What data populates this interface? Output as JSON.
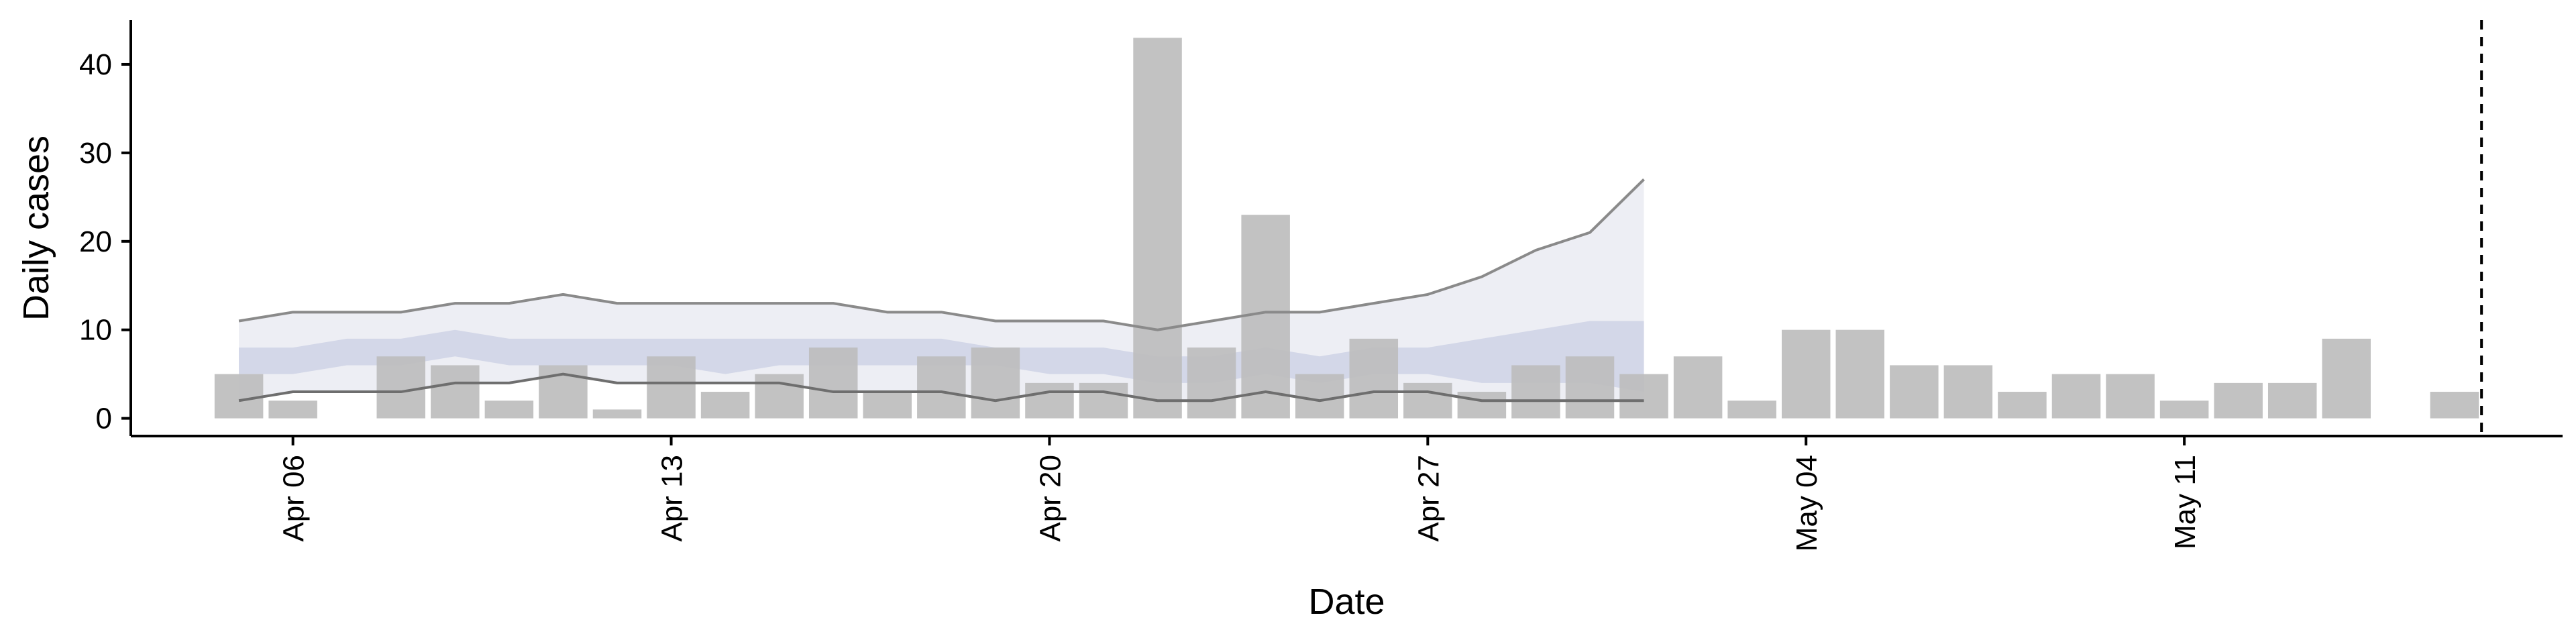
{
  "chart_data": {
    "type": "bar",
    "xlabel": "Date",
    "ylabel": "Daily cases",
    "ylim": [
      -2,
      45
    ],
    "xlim": [
      "2020-04-03",
      "2020-05-18"
    ],
    "yticks": [
      0,
      10,
      20,
      30,
      40
    ],
    "xticks": [
      {
        "date": "2020-04-06",
        "label": "Apr 06"
      },
      {
        "date": "2020-04-13",
        "label": "Apr 13"
      },
      {
        "date": "2020-04-20",
        "label": "Apr 20"
      },
      {
        "date": "2020-04-27",
        "label": "Apr 27"
      },
      {
        "date": "2020-05-04",
        "label": "May 04"
      },
      {
        "date": "2020-05-11",
        "label": "May 11"
      }
    ],
    "grid": false,
    "legend": "none",
    "bar_color": "#bdbdbd",
    "series": [
      {
        "kind": "bars",
        "dates": [
          "2020-04-05",
          "2020-04-06",
          "2020-04-07",
          "2020-04-08",
          "2020-04-09",
          "2020-04-10",
          "2020-04-11",
          "2020-04-12",
          "2020-04-13",
          "2020-04-14",
          "2020-04-15",
          "2020-04-16",
          "2020-04-17",
          "2020-04-18",
          "2020-04-19",
          "2020-04-20",
          "2020-04-21",
          "2020-04-22",
          "2020-04-23",
          "2020-04-24",
          "2020-04-25",
          "2020-04-26",
          "2020-04-27",
          "2020-04-28",
          "2020-04-29",
          "2020-04-30",
          "2020-05-01",
          "2020-05-02",
          "2020-05-03",
          "2020-05-04",
          "2020-05-05",
          "2020-05-06",
          "2020-05-07",
          "2020-05-08",
          "2020-05-09",
          "2020-05-10",
          "2020-05-11",
          "2020-05-12",
          "2020-05-13",
          "2020-05-14",
          "2020-05-15",
          "2020-05-16"
        ],
        "values": [
          5,
          2,
          0,
          7,
          6,
          2,
          6,
          1,
          7,
          3,
          5,
          8,
          3,
          7,
          8,
          4,
          4,
          43,
          8,
          23,
          5,
          9,
          4,
          3,
          6,
          7,
          5,
          7,
          2,
          10,
          10,
          6,
          6,
          3,
          5,
          5,
          2,
          4,
          4,
          9,
          0,
          3
        ]
      },
      {
        "kind": "ribbon",
        "color": "#e6e7f0",
        "dates": [
          "2020-04-05",
          "2020-04-06",
          "2020-04-07",
          "2020-04-08",
          "2020-04-09",
          "2020-04-10",
          "2020-04-11",
          "2020-04-12",
          "2020-04-13",
          "2020-04-14",
          "2020-04-15",
          "2020-04-16",
          "2020-04-17",
          "2020-04-18",
          "2020-04-19",
          "2020-04-20",
          "2020-04-21",
          "2020-04-22",
          "2020-04-23",
          "2020-04-24",
          "2020-04-25",
          "2020-04-26",
          "2020-04-27",
          "2020-04-28",
          "2020-04-29",
          "2020-04-30",
          "2020-05-01"
        ],
        "lower": [
          2,
          3,
          3,
          3,
          4,
          4,
          5,
          4,
          4,
          4,
          4,
          3,
          3,
          3,
          2,
          3,
          3,
          2,
          2,
          3,
          2,
          3,
          3,
          2,
          2,
          2,
          2
        ],
        "upper": [
          11,
          12,
          12,
          12,
          13,
          13,
          14,
          13,
          13,
          13,
          13,
          13,
          12,
          12,
          11,
          11,
          11,
          10,
          11,
          12,
          12,
          13,
          14,
          16,
          19,
          21,
          27
        ]
      },
      {
        "kind": "ribbon",
        "color": "#c8cde3",
        "dates": [
          "2020-04-05",
          "2020-04-06",
          "2020-04-07",
          "2020-04-08",
          "2020-04-09",
          "2020-04-10",
          "2020-04-11",
          "2020-04-12",
          "2020-04-13",
          "2020-04-14",
          "2020-04-15",
          "2020-04-16",
          "2020-04-17",
          "2020-04-18",
          "2020-04-19",
          "2020-04-20",
          "2020-04-21",
          "2020-04-22",
          "2020-04-23",
          "2020-04-24",
          "2020-04-25",
          "2020-04-26",
          "2020-04-27",
          "2020-04-28",
          "2020-04-29",
          "2020-04-30",
          "2020-05-01"
        ],
        "lower": [
          5,
          5,
          6,
          6,
          7,
          6,
          6,
          6,
          6,
          5,
          6,
          6,
          6,
          6,
          6,
          5,
          5,
          4,
          4,
          5,
          4,
          5,
          5,
          4,
          4,
          4,
          3
        ],
        "upper": [
          8,
          8,
          9,
          9,
          10,
          9,
          9,
          9,
          9,
          9,
          9,
          9,
          9,
          9,
          8,
          8,
          8,
          7,
          7,
          8,
          7,
          8,
          8,
          9,
          10,
          11,
          11
        ]
      },
      {
        "kind": "line",
        "color": "#8a8a8a",
        "dates": [
          "2020-04-05",
          "2020-04-06",
          "2020-04-07",
          "2020-04-08",
          "2020-04-09",
          "2020-04-10",
          "2020-04-11",
          "2020-04-12",
          "2020-04-13",
          "2020-04-14",
          "2020-04-15",
          "2020-04-16",
          "2020-04-17",
          "2020-04-18",
          "2020-04-19",
          "2020-04-20",
          "2020-04-21",
          "2020-04-22",
          "2020-04-23",
          "2020-04-24",
          "2020-04-25",
          "2020-04-26",
          "2020-04-27",
          "2020-04-28",
          "2020-04-29",
          "2020-04-30",
          "2020-05-01"
        ],
        "values": [
          11,
          12,
          12,
          12,
          13,
          13,
          14,
          13,
          13,
          13,
          13,
          13,
          12,
          12,
          11,
          11,
          11,
          10,
          11,
          12,
          12,
          13,
          14,
          16,
          19,
          21,
          27
        ]
      },
      {
        "kind": "line",
        "color": "#6e6e6e",
        "dates": [
          "2020-04-05",
          "2020-04-06",
          "2020-04-07",
          "2020-04-08",
          "2020-04-09",
          "2020-04-10",
          "2020-04-11",
          "2020-04-12",
          "2020-04-13",
          "2020-04-14",
          "2020-04-15",
          "2020-04-16",
          "2020-04-17",
          "2020-04-18",
          "2020-04-19",
          "2020-04-20",
          "2020-04-21",
          "2020-04-22",
          "2020-04-23",
          "2020-04-24",
          "2020-04-25",
          "2020-04-26",
          "2020-04-27",
          "2020-04-28",
          "2020-04-29",
          "2020-04-30",
          "2020-05-01"
        ],
        "values": [
          2,
          3,
          3,
          3,
          4,
          4,
          5,
          4,
          4,
          4,
          4,
          3,
          3,
          3,
          2,
          3,
          3,
          2,
          2,
          3,
          2,
          3,
          3,
          2,
          2,
          2,
          2
        ]
      }
    ],
    "vline": {
      "date": "2020-05-16",
      "style": "dashed",
      "color": "#000000"
    }
  }
}
